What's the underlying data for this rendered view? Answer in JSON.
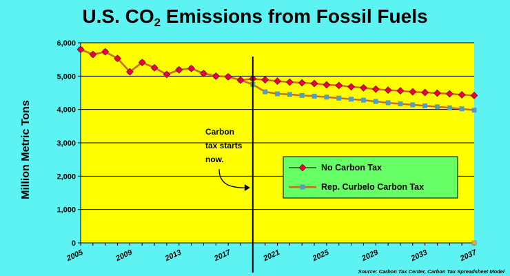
{
  "title_main": "U.S. CO",
  "title_sub": "2",
  "title_rest": " Emissions from Fossil Fuels",
  "source": "Source:  Carbon Tax Center, Carbon Tax Spreadsheet Model",
  "annotation": [
    "Carbon",
    "tax starts",
    "now."
  ],
  "colors": {
    "background": "#5EF3F3",
    "plot": "#FFFF00",
    "legend_bg": "#66FF66",
    "line": "#D2691E",
    "no_tax_marker": "#E8003C",
    "tax_marker": "#4F9FBF"
  },
  "chart_data": {
    "type": "line",
    "title": "U.S. CO2 Emissions from Fossil Fuels",
    "ylabel": "Million Metric Tons",
    "xlabel": "",
    "xlim": [
      2005,
      2037
    ],
    "ylim": [
      0,
      6000
    ],
    "xticks": [
      "2005",
      "2009",
      "2013",
      "2017",
      "2021",
      "2025",
      "2029",
      "2033",
      "2037"
    ],
    "yticks": [
      "0",
      "1,000",
      "2,000",
      "3,000",
      "4,000",
      "5,000",
      "6,000"
    ],
    "vline_x": 2019,
    "legend_position": "right-center",
    "series": [
      {
        "name": "No Carbon Tax",
        "marker": "diamond",
        "points": [
          [
            2005,
            5800
          ],
          [
            2006,
            5650
          ],
          [
            2007,
            5730
          ],
          [
            2008,
            5530
          ],
          [
            2009,
            5130
          ],
          [
            2010,
            5410
          ],
          [
            2011,
            5250
          ],
          [
            2012,
            5050
          ],
          [
            2013,
            5190
          ],
          [
            2014,
            5230
          ],
          [
            2015,
            5080
          ],
          [
            2016,
            5000
          ],
          [
            2017,
            4980
          ],
          [
            2018,
            4880
          ],
          [
            2019,
            4920
          ],
          [
            2020,
            4890
          ],
          [
            2021,
            4850
          ],
          [
            2022,
            4820
          ],
          [
            2023,
            4800
          ],
          [
            2024,
            4780
          ],
          [
            2025,
            4740
          ],
          [
            2026,
            4720
          ],
          [
            2027,
            4680
          ],
          [
            2028,
            4650
          ],
          [
            2029,
            4610
          ],
          [
            2030,
            4580
          ],
          [
            2031,
            4560
          ],
          [
            2032,
            4530
          ],
          [
            2033,
            4510
          ],
          [
            2034,
            4490
          ],
          [
            2035,
            4470
          ],
          [
            2036,
            4440
          ],
          [
            2037,
            4420
          ]
        ]
      },
      {
        "name": "Rep. Curbelo Carbon Tax",
        "marker": "square",
        "points": [
          [
            2005,
            5800
          ],
          [
            2006,
            5650
          ],
          [
            2007,
            5730
          ],
          [
            2008,
            5530
          ],
          [
            2009,
            5130
          ],
          [
            2010,
            5410
          ],
          [
            2011,
            5250
          ],
          [
            2012,
            5050
          ],
          [
            2013,
            5190
          ],
          [
            2014,
            5230
          ],
          [
            2015,
            5080
          ],
          [
            2016,
            5000
          ],
          [
            2017,
            4980
          ],
          [
            2018,
            4880
          ],
          [
            2019,
            4750
          ],
          [
            2020,
            4530
          ],
          [
            2021,
            4470
          ],
          [
            2022,
            4450
          ],
          [
            2023,
            4420
          ],
          [
            2024,
            4400
          ],
          [
            2025,
            4370
          ],
          [
            2026,
            4340
          ],
          [
            2027,
            4310
          ],
          [
            2028,
            4280
          ],
          [
            2029,
            4240
          ],
          [
            2030,
            4200
          ],
          [
            2031,
            4170
          ],
          [
            2032,
            4140
          ],
          [
            2033,
            4110
          ],
          [
            2034,
            4080
          ],
          [
            2035,
            4050
          ],
          [
            2036,
            4020
          ],
          [
            2037,
            3980
          ]
        ]
      }
    ],
    "stray_marker": [
      2037,
      0
    ]
  }
}
